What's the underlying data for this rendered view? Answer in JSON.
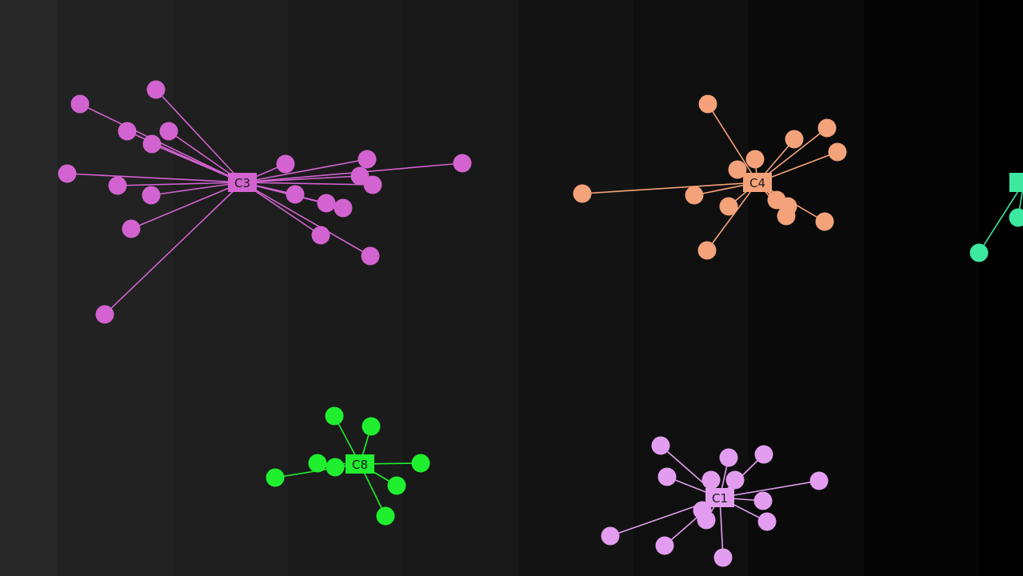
{
  "background": {
    "bands": [
      "#282828",
      "#222222",
      "#1e1e1e",
      "#1b1b1b",
      "#181818",
      "#141414",
      "#0f0f0f",
      "#0a0a0a",
      "#050505",
      "#000000"
    ]
  },
  "clusters": [
    {
      "id": "c3",
      "label": "C3",
      "color": "#d263d0",
      "leaves": 21
    },
    {
      "id": "c4",
      "label": "C4",
      "color": "#f4a27a",
      "leaves": 17
    },
    {
      "id": "c8",
      "label": "C8",
      "color": "#1fef2f",
      "leaves": 8
    },
    {
      "id": "c1",
      "label": "C1",
      "color": "#e29df0",
      "leaves": 16
    },
    {
      "id": "partial",
      "label": "",
      "color": "#3de8a0",
      "leaves": 2
    }
  ]
}
